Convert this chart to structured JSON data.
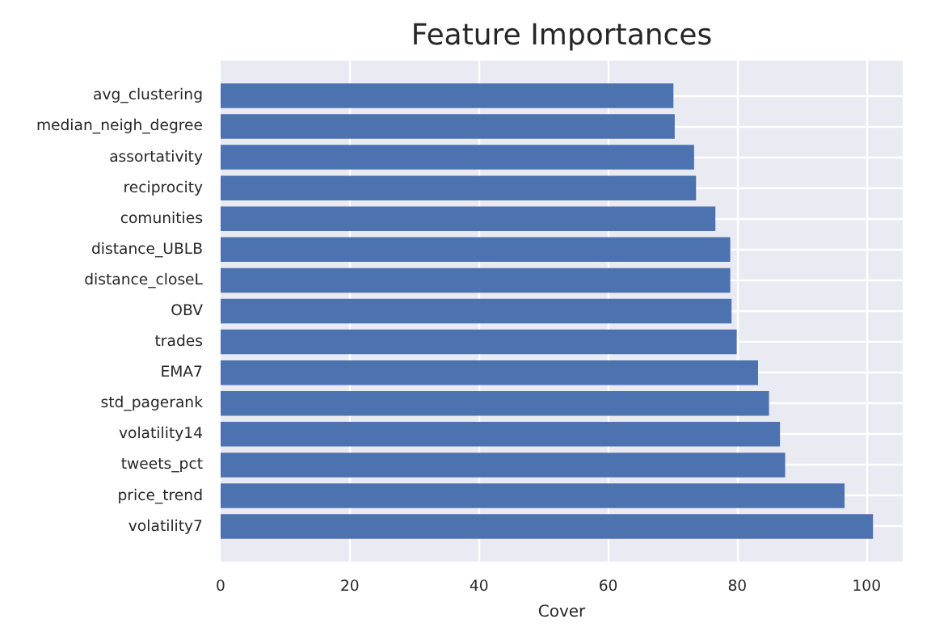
{
  "chart_data": {
    "type": "bar",
    "orientation": "horizontal",
    "title": "Feature Importances",
    "xlabel": "Cover",
    "categories": [
      "avg_clustering",
      "median_neigh_degree",
      "assortativity",
      "reciprocity",
      "comunities",
      "distance_UBLB",
      "distance_closeL",
      "OBV",
      "trades",
      "EMA7",
      "std_pagerank",
      "volatility14",
      "tweets_pct",
      "price_trend",
      "volatility7"
    ],
    "values": [
      70.1,
      70.3,
      73.3,
      73.6,
      76.6,
      78.9,
      78.9,
      79.1,
      79.9,
      83.2,
      84.9,
      86.6,
      87.4,
      96.6,
      101.0
    ],
    "color": "#4c72b0",
    "xlim": [
      0,
      105.6
    ],
    "xticks": [
      0,
      20,
      40,
      60,
      80,
      100
    ],
    "grid": true
  }
}
